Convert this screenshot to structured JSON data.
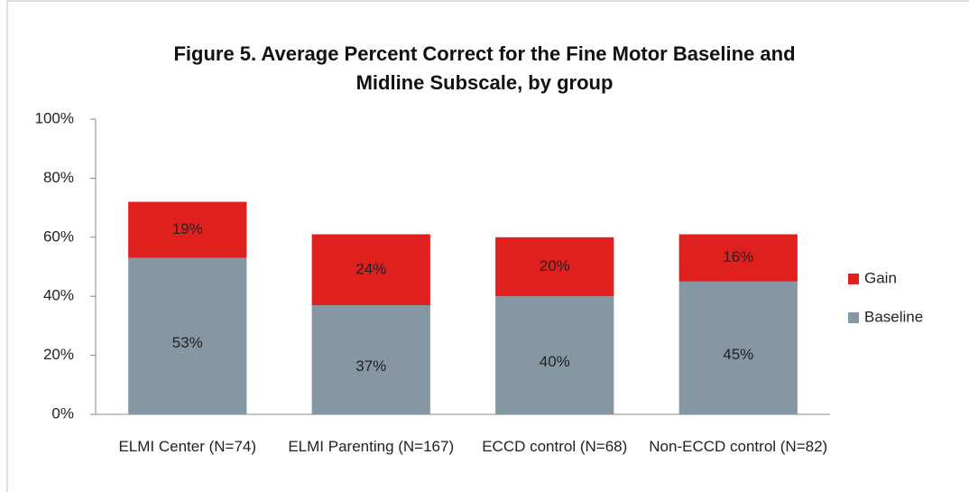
{
  "chart_data": {
    "type": "stacked_bar",
    "title": "Figure 5. Average Percent Correct for the Fine Motor Baseline and Midline Subscale, by group",
    "categories": [
      "ELMI Center (N=74)",
      "ELMI Parenting (N=167)",
      "ECCD control (N=68)",
      "Non-ECCD control (N=82)"
    ],
    "series": [
      {
        "name": "Baseline",
        "color": "#8497a2",
        "values": [
          53,
          37,
          40,
          45
        ],
        "value_labels": [
          "53%",
          "37%",
          "40%",
          "45%"
        ]
      },
      {
        "name": "Gain",
        "color": "#e0201f",
        "values": [
          19,
          24,
          20,
          16
        ],
        "value_labels": [
          "19%",
          "24%",
          "20%",
          "16%"
        ]
      }
    ],
    "ylim": [
      0,
      100
    ],
    "yticks": [
      {
        "value": 0,
        "label": "0%"
      },
      {
        "value": 20,
        "label": "20%"
      },
      {
        "value": 40,
        "label": "40%"
      },
      {
        "value": 60,
        "label": "60%"
      },
      {
        "value": 80,
        "label": "80%"
      },
      {
        "value": 100,
        "label": "100%"
      }
    ],
    "grid": false,
    "legend": "right"
  }
}
